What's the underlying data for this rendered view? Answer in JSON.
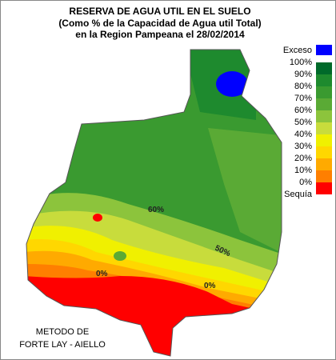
{
  "header": {
    "title": "RESERVA DE AGUA UTIL EN EL SUELO",
    "subtitle": "(Como % de la Capacidad de Agua util Total)",
    "subtitle2": "en la Region Pampeana el 28/02/2014"
  },
  "legend": {
    "labels": [
      "Exceso",
      "100%",
      "90%",
      "80%",
      "70%",
      "60%",
      "50%",
      "40%",
      "30%",
      "20%",
      "10%",
      "0%",
      "Sequía"
    ],
    "colors": [
      "#0000ff",
      "#006a2a",
      "#1e8a2e",
      "#3a9a30",
      "#5aaa35",
      "#8cc43c",
      "#c8dc3c",
      "#f0f000",
      "#ffd700",
      "#ffaa00",
      "#ff7f00",
      "#ff0000"
    ]
  },
  "map": {
    "contour_labels": [
      "60%",
      "50%",
      "0%",
      "0%"
    ]
  },
  "footer": {
    "line1": "METODO DE",
    "line2": "FORTE LAY - AIELLO"
  }
}
